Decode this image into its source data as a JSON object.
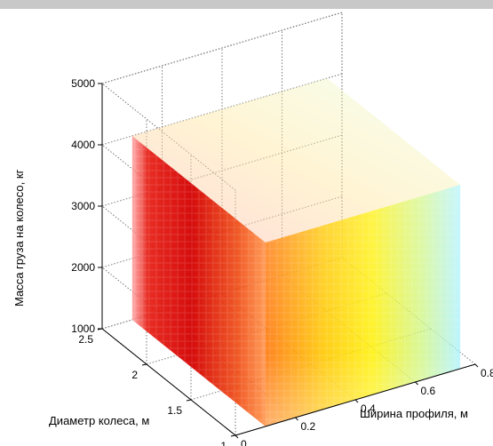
{
  "chart_data": {
    "type": "scatter3d",
    "xlabel": "Ширина профиля, м",
    "ylabel": "Диаметр колеса, м",
    "zlabel": "Масса груза на колесо, кг",
    "x_ticks": [
      "0",
      "0.2",
      "0.4",
      "0.6",
      "0.8"
    ],
    "y_ticks": [
      "1",
      "1.5",
      "2",
      "2.5"
    ],
    "z_ticks": [
      "1000",
      "2000",
      "3000",
      "4000",
      "5000"
    ],
    "xlim": [
      0,
      0.8
    ],
    "ylim": [
      1,
      2.5
    ],
    "zlim": [
      1000,
      5000
    ],
    "x": [
      0.1,
      0.75
    ],
    "y": [
      1.0,
      2.5
    ],
    "z": [
      1000,
      4000
    ],
    "grid": true,
    "colormap": "jet",
    "colors": {
      "high": "#d40000",
      "mid": "#ffe000",
      "low": "#9ff0ff"
    }
  }
}
